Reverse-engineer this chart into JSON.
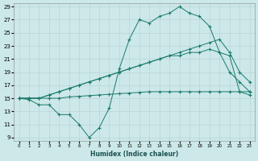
{
  "xlabel": "Humidex (Indice chaleur)",
  "bg_color": "#cce8e8",
  "grid_color": "#b8d4d4",
  "line_color": "#1a7a6e",
  "xlim": [
    0,
    23
  ],
  "ylim": [
    9,
    29
  ],
  "xticks": [
    0,
    1,
    2,
    3,
    4,
    5,
    6,
    7,
    8,
    9,
    10,
    11,
    12,
    13,
    14,
    15,
    16,
    17,
    18,
    19,
    20,
    21,
    22,
    23
  ],
  "yticks": [
    9,
    11,
    13,
    15,
    17,
    19,
    21,
    23,
    25,
    27,
    29
  ],
  "series": [
    {
      "x": [
        0,
        1,
        2,
        3,
        4,
        5,
        6,
        7,
        8,
        9,
        10,
        11,
        12,
        13,
        14,
        15,
        16,
        17,
        18,
        19,
        20,
        21,
        22,
        23
      ],
      "y": [
        15.0,
        14.8,
        14.0,
        14.0,
        12.5,
        12.5,
        11.0,
        9.0,
        10.5,
        13.5,
        19.5,
        24.0,
        27.0,
        26.5,
        27.5,
        28.0,
        29.0,
        28.0,
        27.5,
        26.0,
        22.0,
        19.0,
        17.5,
        16.0
      ]
    },
    {
      "x": [
        0,
        1,
        2,
        3,
        4,
        5,
        6,
        7,
        8,
        9,
        10,
        11,
        12,
        13,
        14,
        15,
        16,
        17,
        18,
        19,
        20,
        21,
        22,
        23
      ],
      "y": [
        15.0,
        15.0,
        15.0,
        15.5,
        16.0,
        16.5,
        17.0,
        17.5,
        18.0,
        18.5,
        19.0,
        19.5,
        20.0,
        20.5,
        21.0,
        21.5,
        22.0,
        22.5,
        23.0,
        23.5,
        24.0,
        22.0,
        19.0,
        17.5
      ]
    },
    {
      "x": [
        0,
        1,
        2,
        3,
        4,
        5,
        6,
        7,
        8,
        9,
        10,
        11,
        12,
        13,
        14,
        15,
        16,
        17,
        18,
        19,
        20,
        21,
        22,
        23
      ],
      "y": [
        15.0,
        15.0,
        15.0,
        15.5,
        16.0,
        16.5,
        17.0,
        17.5,
        18.0,
        18.5,
        19.0,
        19.5,
        20.0,
        20.5,
        21.0,
        21.5,
        21.5,
        22.0,
        22.0,
        22.5,
        22.0,
        21.5,
        16.0,
        15.5
      ]
    },
    {
      "x": [
        0,
        1,
        2,
        3,
        4,
        5,
        6,
        7,
        8,
        9,
        10,
        11,
        12,
        13,
        14,
        15,
        16,
        17,
        18,
        19,
        20,
        21,
        22,
        23
      ],
      "y": [
        15.0,
        15.0,
        15.0,
        15.0,
        15.0,
        15.2,
        15.3,
        15.4,
        15.5,
        15.6,
        15.7,
        15.8,
        15.9,
        16.0,
        16.0,
        16.0,
        16.0,
        16.0,
        16.0,
        16.0,
        16.0,
        16.0,
        16.0,
        16.0
      ]
    }
  ]
}
